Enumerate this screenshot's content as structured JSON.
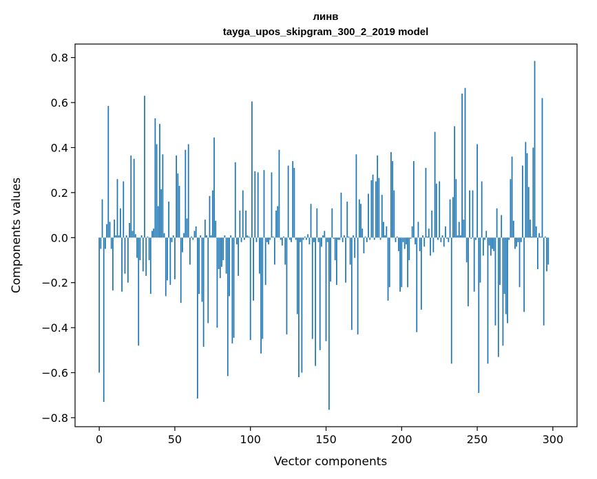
{
  "chart_data": {
    "type": "bar",
    "title": "линв",
    "subtitle": "tayga_upos_skipgram_300_2_2019 model",
    "xlabel": "Vector components",
    "ylabel": "Components values",
    "xlim": [
      -16,
      316
    ],
    "ylim": [
      -0.84,
      0.86
    ],
    "xticks": [
      0,
      50,
      100,
      150,
      200,
      250,
      300
    ],
    "xtick_labels": [
      "0",
      "50",
      "100",
      "150",
      "200",
      "250",
      "300"
    ],
    "yticks": [
      -0.8,
      -0.6,
      -0.4,
      -0.2,
      0.0,
      0.2,
      0.4,
      0.6,
      0.8
    ],
    "ytick_labels": [
      "−0.8",
      "−0.6",
      "−0.4",
      "−0.2",
      "0.0",
      "0.2",
      "0.4",
      "0.6",
      "0.8"
    ],
    "color": "#1f77b4",
    "grid": false,
    "values": [
      -0.6,
      -0.05,
      0.17,
      -0.73,
      -0.05,
      0.06,
      0.585,
      0.07,
      -0.05,
      -0.235,
      0.08,
      0.01,
      0.26,
      0.01,
      0.13,
      -0.24,
      0.25,
      -0.16,
      0.01,
      -0.2,
      0.065,
      0.365,
      0.03,
      0.35,
      0.015,
      -0.09,
      -0.48,
      -0.1,
      0.01,
      -0.15,
      0.63,
      -0.17,
      0.005,
      -0.1,
      -0.25,
      0.03,
      0.04,
      0.53,
      0.415,
      0.14,
      0.505,
      0.215,
      0.37,
      0.02,
      -0.26,
      -0.19,
      0.16,
      -0.21,
      -0.02,
      0.01,
      -0.185,
      0.365,
      0.285,
      0.23,
      -0.29,
      -0.065,
      0.02,
      0.39,
      0.085,
      0.415,
      -0.12,
      0.005,
      -0.01,
      0.03,
      0.05,
      -0.715,
      -0.25,
      0.01,
      -0.285,
      -0.485,
      0.08,
      0.01,
      -0.38,
      0.185,
      0.01,
      0.21,
      0.445,
      0.075,
      -0.4,
      -0.14,
      -0.18,
      -0.13,
      -0.1,
      0.01,
      -0.16,
      -0.615,
      -0.26,
      0.01,
      -0.47,
      -0.445,
      0.335,
      -0.03,
      -0.17,
      0.12,
      -0.02,
      0.21,
      -0.01,
      0.12,
      0.01,
      0.005,
      -0.455,
      0.605,
      -0.28,
      0.295,
      -0.02,
      0.29,
      -0.16,
      -0.515,
      -0.45,
      0.3,
      -0.21,
      -0.02,
      -0.03,
      -0.01,
      0.29,
      0.005,
      -0.12,
      0.12,
      0.14,
      0.39,
      -0.01,
      -0.035,
      0.005,
      -0.12,
      -0.43,
      0.32,
      -0.01,
      -0.02,
      0.34,
      0.31,
      -0.01,
      -0.34,
      -0.62,
      -0.02,
      -0.6,
      -0.01,
      0.005,
      -0.01,
      0.015,
      -0.03,
      0.15,
      -0.45,
      -0.02,
      -0.57,
      0.13,
      -0.02,
      -0.5,
      -0.04,
      0.01,
      0.03,
      -0.46,
      -0.02,
      -0.765,
      -0.195,
      0.13,
      -0.005,
      -0.1,
      -0.21,
      -0.01,
      -0.01,
      0.2,
      -0.02,
      0.01,
      -0.2,
      0.16,
      0.005,
      -0.12,
      -0.41,
      0.01,
      -0.09,
      0.37,
      -0.43,
      0.17,
      0.15,
      0.04,
      -0.07,
      0.005,
      -0.02,
      0.195,
      -0.01,
      0.255,
      0.28,
      -0.01,
      0.25,
      0.365,
      0.265,
      -0.01,
      0.19,
      0.07,
      0.01,
      0.05,
      -0.28,
      -0.22,
      0.38,
      0.34,
      0.21,
      -0.02,
      0.005,
      -0.06,
      -0.24,
      -0.22,
      -0.02,
      -0.05,
      -0.03,
      -0.22,
      -0.1,
      -0.005,
      0.05,
      0.34,
      -0.03,
      -0.42,
      0.07,
      -0.06,
      -0.32,
      0.01,
      -0.04,
      0.31,
      0.005,
      0.04,
      -0.08,
      0.12,
      -0.065,
      0.47,
      0.24,
      -0.01,
      0.25,
      -0.02,
      0.01,
      -0.04,
      0.05,
      -0.005,
      -0.02,
      0.17,
      -0.56,
      0.18,
      0.495,
      0.26,
      0.01,
      0.07,
      0.01,
      0.64,
      0.08,
      0.665,
      -0.11,
      -0.305,
      0.21,
      -0.005,
      0.21,
      -0.24,
      -0.01,
      0.415,
      -0.69,
      -0.2,
      0.25,
      -0.08,
      -0.01,
      0.03,
      -0.56,
      -0.035,
      -0.08,
      -0.05,
      -0.06,
      -0.39,
      0.13,
      -0.53,
      -0.21,
      0.1,
      -0.48,
      -0.25,
      -0.34,
      -0.38,
      -0.01,
      0.26,
      0.36,
      0.075,
      -0.05,
      -0.04,
      -0.02,
      -0.22,
      -0.02,
      0.32,
      -0.33,
      0.425,
      0.375,
      0.225,
      0.08,
      0.005,
      0.4,
      0.785,
      0.05,
      -0.14,
      0.02,
      0.005,
      0.62,
      -0.39,
      0.005,
      -0.15,
      -0.12
    ]
  }
}
